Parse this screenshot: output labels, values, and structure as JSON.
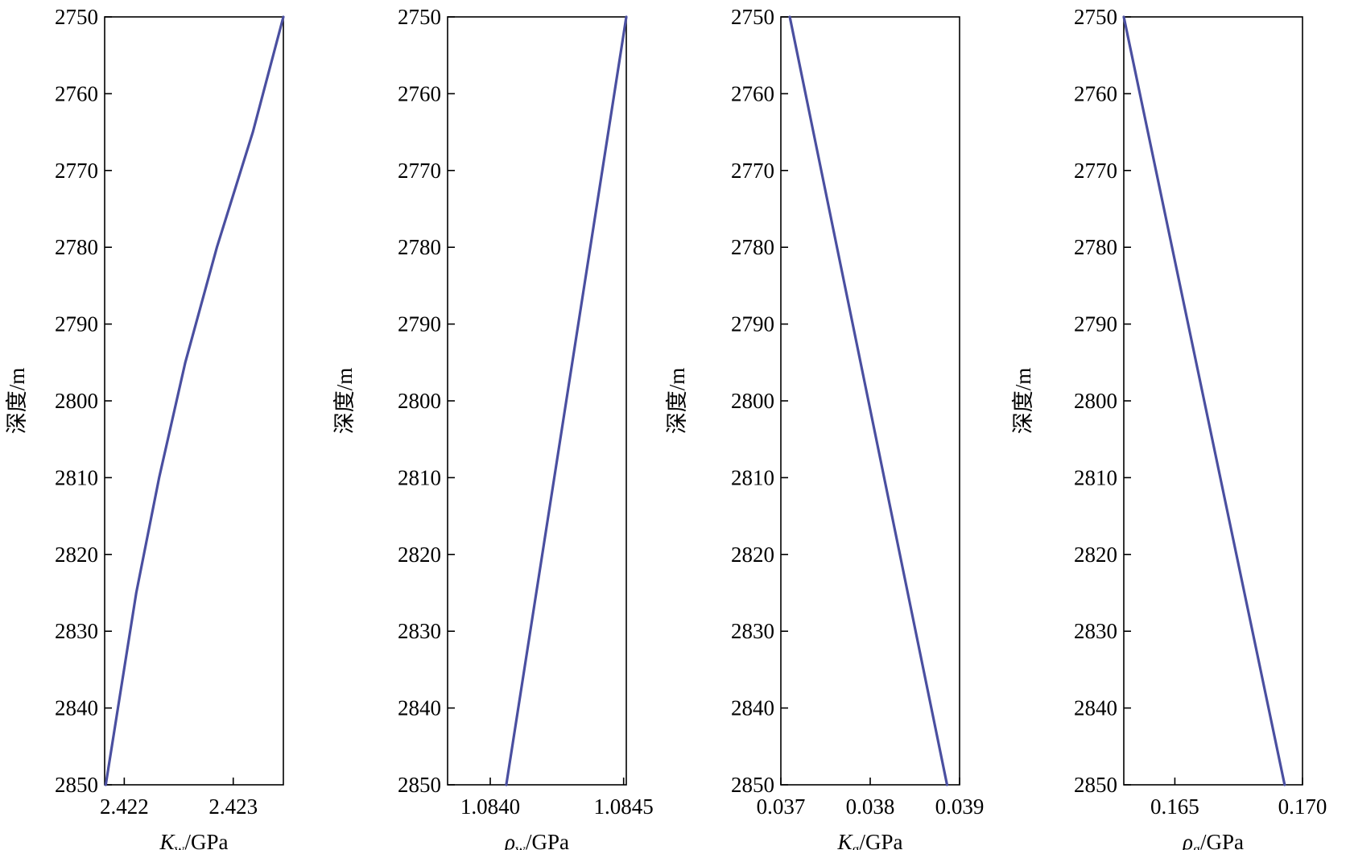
{
  "series_color": "#4a4fa0",
  "chart_data": [
    {
      "type": "line",
      "xlabel": {
        "symbol": "K",
        "sub": "w",
        "unit": "/GPa",
        "italic": true
      },
      "ylabel": "深度/m",
      "xlim": [
        2.42182,
        2.42346
      ],
      "ylim": [
        2750,
        2850
      ],
      "xticks": [
        2.422,
        2.423
      ],
      "xtick_labels": [
        "2.422",
        "2.423"
      ],
      "yticks": [
        2750,
        2760,
        2770,
        2780,
        2790,
        2800,
        2810,
        2820,
        2830,
        2840,
        2850
      ],
      "ytick_labels": [
        "2750",
        "2760",
        "2770",
        "2780",
        "2790",
        "2800",
        "2810",
        "2820",
        "2830",
        "2840",
        "2850"
      ],
      "series": [
        {
          "x": [
            2.42346,
            2.42318,
            2.42285,
            2.42256,
            2.42232,
            2.42211,
            2.42183
          ],
          "y": [
            2750,
            2765,
            2780,
            2795,
            2810,
            2825,
            2850
          ]
        }
      ]
    },
    {
      "type": "line",
      "xlabel": {
        "symbol": "ρ",
        "sub": "w",
        "unit": "/GPa",
        "italic": true
      },
      "ylabel": "深度/m",
      "xlim": [
        1.08384,
        1.08451
      ],
      "ylim": [
        2750,
        2850
      ],
      "xticks": [
        1.084,
        1.0845
      ],
      "xtick_labels": [
        "1.0840",
        "1.0845"
      ],
      "yticks": [
        2750,
        2760,
        2770,
        2780,
        2790,
        2800,
        2810,
        2820,
        2830,
        2840,
        2850
      ],
      "ytick_labels": [
        "2750",
        "2760",
        "2770",
        "2780",
        "2790",
        "2800",
        "2810",
        "2820",
        "2830",
        "2840",
        "2850"
      ],
      "series": [
        {
          "x": [
            1.08451,
            1.08406
          ],
          "y": [
            2750,
            2850
          ]
        }
      ]
    },
    {
      "type": "line",
      "xlabel": {
        "symbol": "K",
        "sub": "g",
        "unit": "/GPa",
        "italic": true
      },
      "ylabel": "深度/m",
      "xlim": [
        0.037,
        0.039
      ],
      "ylim": [
        2750,
        2850
      ],
      "xticks": [
        0.037,
        0.038,
        0.039
      ],
      "xtick_labels": [
        "0.037",
        "0.038",
        "0.039"
      ],
      "yticks": [
        2750,
        2760,
        2770,
        2780,
        2790,
        2800,
        2810,
        2820,
        2830,
        2840,
        2850
      ],
      "ytick_labels": [
        "2750",
        "2760",
        "2770",
        "2780",
        "2790",
        "2800",
        "2810",
        "2820",
        "2830",
        "2840",
        "2850"
      ],
      "series": [
        {
          "x": [
            0.0371,
            0.03886
          ],
          "y": [
            2750,
            2850
          ]
        }
      ]
    },
    {
      "type": "line",
      "xlabel": {
        "symbol": "ρ",
        "sub": "g",
        "unit": "/GPa",
        "italic": true
      },
      "ylabel": "深度/m",
      "xlim": [
        0.163,
        0.17
      ],
      "ylim": [
        2750,
        2850
      ],
      "xticks": [
        0.165,
        0.17
      ],
      "xtick_labels": [
        "0.165",
        "0.170"
      ],
      "yticks": [
        2750,
        2760,
        2770,
        2780,
        2790,
        2800,
        2810,
        2820,
        2830,
        2840,
        2850
      ],
      "ytick_labels": [
        "2750",
        "2760",
        "2770",
        "2780",
        "2790",
        "2800",
        "2810",
        "2820",
        "2830",
        "2840",
        "2850"
      ],
      "series": [
        {
          "x": [
            0.163,
            0.1693
          ],
          "y": [
            2750,
            2850
          ]
        }
      ]
    }
  ]
}
